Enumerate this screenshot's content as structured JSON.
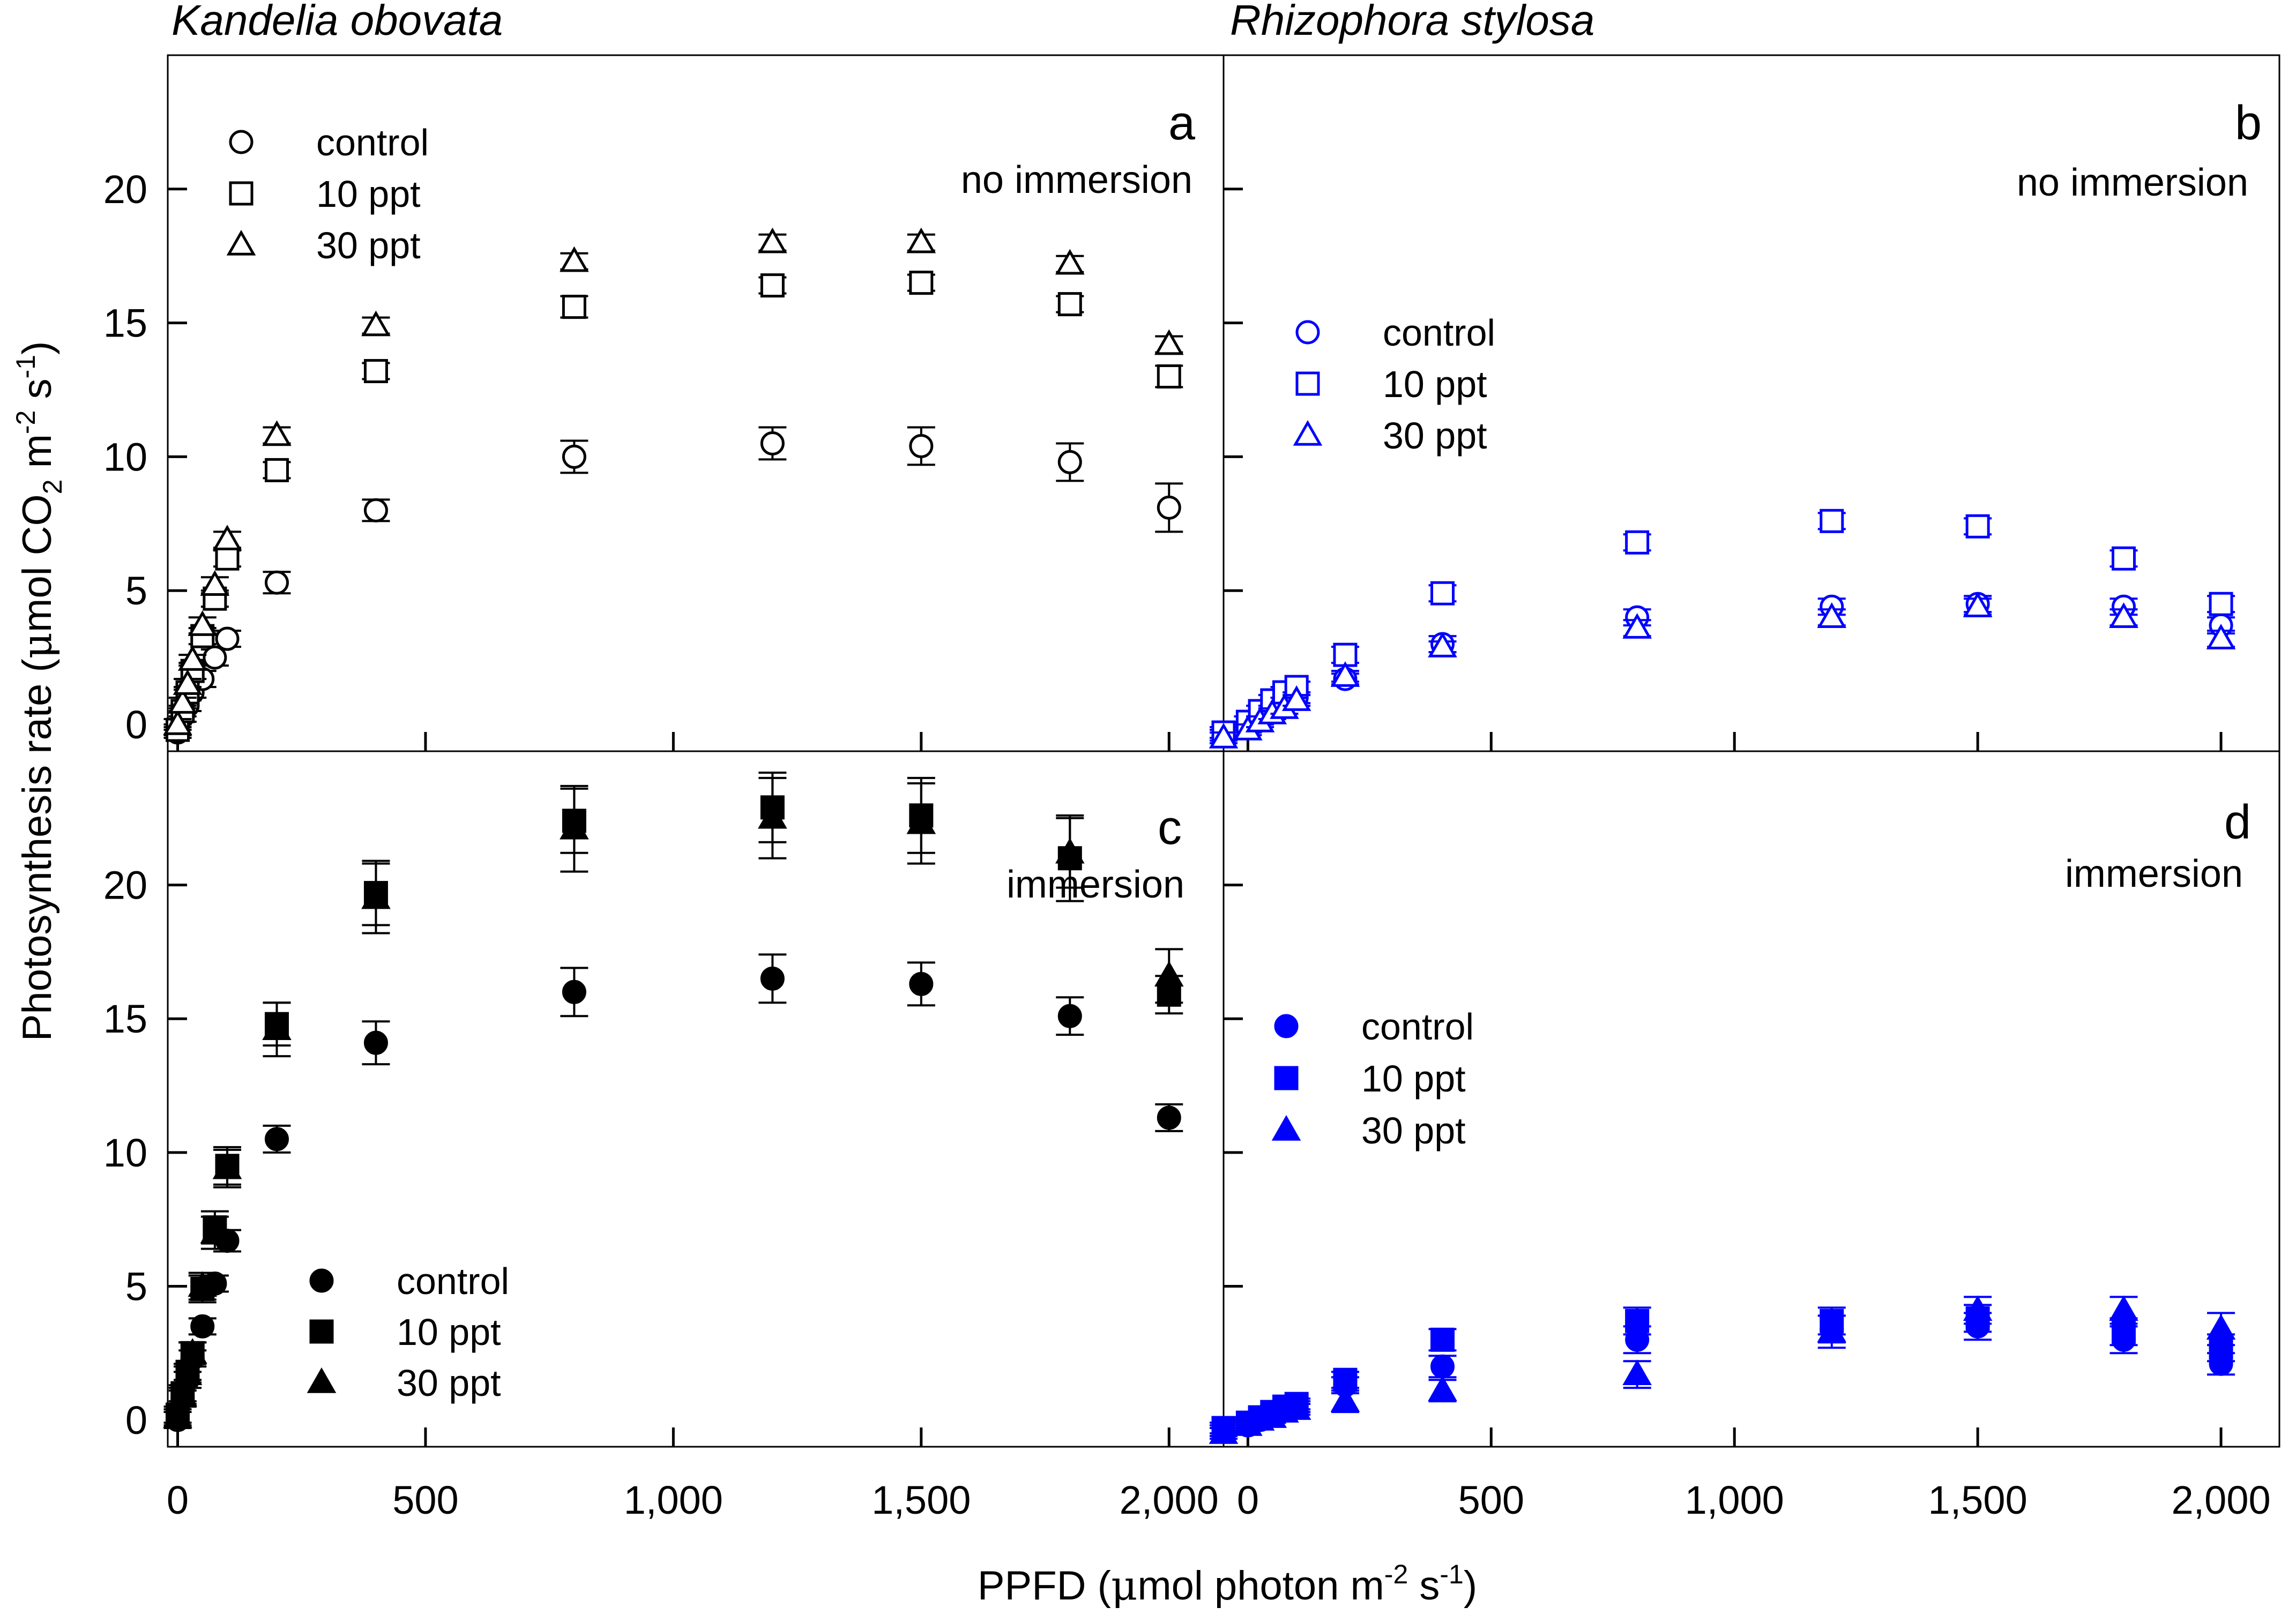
{
  "figure": {
    "y_axis_label": {
      "main": "Photosynthesis rate (",
      "mu": "μ",
      "unit": "mol CO",
      "sub2": "2",
      "m": " m",
      "sup_m": "-2",
      "s": " s",
      "sup_s": "-1",
      "close": ")"
    },
    "x_axis_label": {
      "pre": "PPFD (",
      "mu": "μ",
      "unit": "mol photon m",
      "sup_m": "-2",
      "s": " s",
      "sup_s": "-1",
      "close": ")"
    }
  },
  "colors": {
    "black": "#000000",
    "blue": "#0000ff"
  },
  "chart_data": [
    {
      "id": "a",
      "type": "scatter",
      "title": "Kandelia obovata",
      "panel_label": "a",
      "condition": "no immersion",
      "color": "#000000",
      "fill": "open",
      "legend_position": "top-left",
      "xlim": [
        -20,
        2110
      ],
      "ylim": [
        -1,
        25
      ],
      "yticks": [
        0,
        5,
        10,
        15,
        20
      ],
      "xticks": [
        0,
        500,
        1000,
        1500,
        2000
      ],
      "ytick_labels": [
        "0",
        "5",
        "10",
        "15",
        "20"
      ],
      "xtick_labels": [],
      "x": [
        0,
        10,
        20,
        30,
        50,
        75,
        100,
        200,
        400,
        800,
        1200,
        1500,
        1800,
        2000
      ],
      "series": [
        {
          "name": "control",
          "marker": "circle",
          "values": [
            -0.3,
            0.3,
            0.7,
            1.2,
            1.7,
            2.5,
            3.2,
            5.3,
            8.0,
            10.0,
            10.5,
            10.4,
            9.8,
            8.1
          ],
          "errors": [
            0.2,
            0.2,
            0.2,
            0.2,
            0.3,
            0.3,
            0.3,
            0.4,
            0.4,
            0.6,
            0.6,
            0.7,
            0.7,
            0.9
          ]
        },
        {
          "name": "10 ppt",
          "marker": "square",
          "values": [
            -0.2,
            0.5,
            1.2,
            2.0,
            3.3,
            4.7,
            6.2,
            9.5,
            13.2,
            15.6,
            16.4,
            16.5,
            15.7,
            13.0
          ],
          "errors": [
            0.2,
            0.2,
            0.2,
            0.3,
            0.3,
            0.3,
            0.3,
            0.3,
            0.3,
            0.4,
            0.3,
            0.3,
            0.3,
            0.4
          ]
        },
        {
          "name": "30 ppt",
          "marker": "triangle",
          "values": [
            0,
            0.8,
            1.5,
            2.4,
            3.7,
            5.2,
            6.9,
            10.8,
            14.9,
            17.3,
            18.0,
            18.0,
            17.2,
            14.2
          ],
          "errors": [
            0.2,
            0.2,
            0.2,
            0.2,
            0.3,
            0.3,
            0.3,
            0.3,
            0.3,
            0.3,
            0.3,
            0.3,
            0.3,
            0.3
          ]
        }
      ]
    },
    {
      "id": "b",
      "type": "scatter",
      "title": "Rhizophora stylosa",
      "panel_label": "b",
      "condition": "no immersion",
      "color": "#0000ff",
      "fill": "open",
      "legend_position": "middle-left",
      "xlim": [
        -50,
        2120
      ],
      "ylim": [
        -1,
        25
      ],
      "yticks": [
        0,
        5,
        10,
        15,
        20
      ],
      "xticks": [
        0,
        500,
        1000,
        1500,
        2000
      ],
      "ytick_labels": [],
      "xtick_labels": [],
      "x": [
        -50,
        0,
        25,
        50,
        75,
        100,
        200,
        400,
        800,
        1200,
        1500,
        1800,
        2000
      ],
      "series": [
        {
          "name": "control",
          "marker": "circle",
          "values": [
            -0.4,
            -0.1,
            0.2,
            0.5,
            0.8,
            1.0,
            1.7,
            3.0,
            4.0,
            4.4,
            4.5,
            4.4,
            3.7
          ],
          "errors": [
            0.2,
            0.2,
            0.2,
            0.2,
            0.2,
            0.2,
            0.2,
            0.3,
            0.3,
            0.3,
            0.3,
            0.3,
            0.3
          ]
        },
        {
          "name": "10 ppt",
          "marker": "square",
          "values": [
            -0.3,
            0.1,
            0.5,
            0.9,
            1.2,
            1.4,
            2.6,
            4.9,
            6.8,
            7.6,
            7.4,
            6.2,
            4.5
          ],
          "errors": [
            0.2,
            0.2,
            0.2,
            0.2,
            0.2,
            0.2,
            0.3,
            0.3,
            0.3,
            0.3,
            0.3,
            0.3,
            0.3
          ]
        },
        {
          "name": "30 ppt",
          "marker": "triangle",
          "values": [
            -0.5,
            -0.2,
            0.1,
            0.4,
            0.6,
            0.9,
            1.8,
            2.9,
            3.6,
            4.0,
            4.4,
            4.0,
            3.2
          ],
          "errors": [
            0.2,
            0.2,
            0.2,
            0.2,
            0.2,
            0.2,
            0.2,
            0.2,
            0.3,
            0.3,
            0.3,
            0.3,
            0.3
          ]
        }
      ]
    },
    {
      "id": "c",
      "type": "scatter",
      "title": "",
      "panel_label": "c",
      "condition": "immersion",
      "color": "#000000",
      "fill": "filled",
      "legend_position": "bottom-left",
      "xlim": [
        -20,
        2110
      ],
      "ylim": [
        -1,
        25
      ],
      "yticks": [
        0,
        5,
        10,
        15,
        20
      ],
      "xticks": [
        0,
        500,
        1000,
        1500,
        2000
      ],
      "ytick_labels": [
        "0",
        "5",
        "10",
        "15",
        "20"
      ],
      "xtick_labels": [
        "0",
        "500",
        "1,000",
        "1,500",
        "2,000"
      ],
      "x": [
        0,
        10,
        20,
        30,
        50,
        75,
        100,
        200,
        400,
        800,
        1200,
        1500,
        1800,
        2000
      ],
      "series": [
        {
          "name": "control",
          "marker": "circle",
          "values": [
            0,
            0.8,
            1.5,
            2.3,
            3.5,
            5.1,
            6.7,
            10.5,
            14.1,
            16.0,
            16.5,
            16.3,
            15.1,
            11.3
          ],
          "errors": [
            0.3,
            0.3,
            0.3,
            0.3,
            0.3,
            0.3,
            0.4,
            0.5,
            0.8,
            0.9,
            0.9,
            0.8,
            0.7,
            0.5
          ]
        },
        {
          "name": "10 ppt",
          "marker": "square",
          "values": [
            0.2,
            1.0,
            1.8,
            2.5,
            4.9,
            7.2,
            9.5,
            14.8,
            19.7,
            22.4,
            22.9,
            22.6,
            21.0,
            15.9
          ],
          "errors": [
            0.3,
            0.3,
            0.3,
            0.4,
            0.5,
            0.6,
            0.7,
            0.8,
            1.2,
            1.2,
            1.3,
            1.4,
            1.6,
            0.7
          ]
        },
        {
          "name": "30 ppt",
          "marker": "triangle",
          "values": [
            0.1,
            0.9,
            1.7,
            2.5,
            5.0,
            7.0,
            9.4,
            14.6,
            19.5,
            22.1,
            22.5,
            22.3,
            21.2,
            16.6
          ],
          "errors": [
            0.3,
            0.3,
            0.3,
            0.4,
            0.5,
            0.6,
            0.7,
            1.0,
            1.3,
            1.6,
            1.5,
            1.5,
            1.3,
            1.0
          ]
        }
      ]
    },
    {
      "id": "d",
      "type": "scatter",
      "title": "",
      "panel_label": "d",
      "condition": "immersion",
      "color": "#0000ff",
      "fill": "filled",
      "legend_position": "middle-left",
      "xlim": [
        -50,
        2120
      ],
      "ylim": [
        -1,
        25
      ],
      "yticks": [
        0,
        5,
        10,
        15,
        20
      ],
      "xticks": [
        0,
        500,
        1000,
        1500,
        2000
      ],
      "ytick_labels": [],
      "xtick_labels": [
        "0",
        "500",
        "1,000",
        "1,500",
        "2,000"
      ],
      "x": [
        -50,
        0,
        25,
        50,
        75,
        100,
        200,
        400,
        800,
        1200,
        1500,
        1800,
        2000
      ],
      "series": [
        {
          "name": "control",
          "marker": "circle",
          "values": [
            -0.4,
            -0.2,
            0.0,
            0.2,
            0.4,
            0.5,
            1.3,
            2.0,
            3.0,
            3.4,
            3.5,
            3.0,
            2.1
          ],
          "errors": [
            0.2,
            0.2,
            0.2,
            0.2,
            0.2,
            0.2,
            0.3,
            0.4,
            0.5,
            0.5,
            0.5,
            0.5,
            0.4
          ]
        },
        {
          "name": "10 ppt",
          "marker": "square",
          "values": [
            -0.3,
            -0.1,
            0.1,
            0.3,
            0.5,
            0.6,
            1.5,
            3.0,
            3.7,
            3.7,
            3.8,
            3.3,
            2.7
          ],
          "errors": [
            0.2,
            0.2,
            0.2,
            0.2,
            0.2,
            0.2,
            0.3,
            0.4,
            0.5,
            0.5,
            0.5,
            0.5,
            0.5
          ]
        },
        {
          "name": "30 ppt",
          "marker": "triangle",
          "values": [
            -0.5,
            -0.2,
            0.0,
            0.1,
            0.3,
            0.4,
            0.7,
            1.1,
            1.7,
            3.3,
            4.1,
            4.1,
            3.4
          ],
          "errors": [
            0.2,
            0.2,
            0.2,
            0.2,
            0.2,
            0.2,
            0.4,
            0.4,
            0.5,
            0.6,
            0.5,
            0.5,
            0.6
          ]
        }
      ]
    }
  ]
}
